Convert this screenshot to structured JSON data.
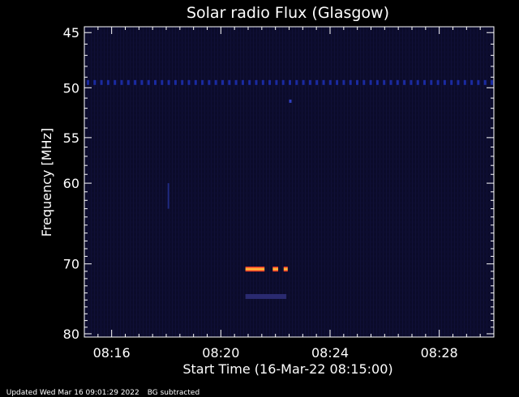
{
  "chart_data": {
    "type": "heatmap",
    "title": "Solar radio Flux (Glasgow)",
    "xlabel": "Start Time (16-Mar-22 08:15:00)",
    "ylabel": "Frequency [MHz]",
    "x_tick_labels": [
      "08:16",
      "08:20",
      "08:24",
      "08:28"
    ],
    "x_ticks_minutes": [
      1,
      5,
      9,
      13
    ],
    "y_tick_labels": [
      "45",
      "50",
      "55",
      "60",
      "70",
      "80"
    ],
    "y_ticks": [
      45,
      50,
      55,
      60,
      70,
      80
    ],
    "x_range_minutes": [
      0,
      15
    ],
    "y_range_mhz": [
      44.5,
      80.5
    ],
    "y_scale": "log",
    "y_inverted": true,
    "grid": false,
    "background_color": "#000000",
    "plot_background": "#0b0b2a",
    "features": [
      {
        "kind": "interference-line",
        "freq_mhz": 49.5,
        "t_start_min": 0,
        "t_end_min": 15,
        "color": "#1a2aa0"
      },
      {
        "kind": "burst",
        "freq_mhz": 70.7,
        "t_start_min": 5.9,
        "t_end_min": 6.6,
        "color": "#ff2020"
      },
      {
        "kind": "burst",
        "freq_mhz": 70.7,
        "t_start_min": 6.9,
        "t_end_min": 7.1,
        "color": "#ff2020"
      },
      {
        "kind": "burst",
        "freq_mhz": 70.7,
        "t_start_min": 7.3,
        "t_end_min": 7.45,
        "color": "#ff2020"
      },
      {
        "kind": "weak-emission",
        "freq_mhz": 74.5,
        "t_start_min": 5.9,
        "t_end_min": 7.4,
        "color": "#2a2a70"
      },
      {
        "kind": "spike",
        "freq_mhz": 51.3,
        "t_start_min": 7.5,
        "t_end_min": 7.55,
        "color": "#3040c0"
      },
      {
        "kind": "vertical-streak",
        "freq_start_mhz": 60,
        "freq_end_mhz": 63,
        "t_min": 3.05,
        "color": "#202a80"
      }
    ]
  },
  "footer": {
    "updated": "Updated Wed Mar 16 09:01:29 2022",
    "note": "BG subtracted"
  }
}
